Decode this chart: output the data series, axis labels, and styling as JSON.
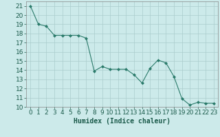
{
  "x": [
    0,
    1,
    2,
    3,
    4,
    5,
    6,
    7,
    8,
    9,
    10,
    11,
    12,
    13,
    14,
    15,
    16,
    17,
    18,
    19,
    20,
    21,
    22,
    23
  ],
  "y": [
    21,
    19,
    18.8,
    17.8,
    17.8,
    17.8,
    17.8,
    17.5,
    13.9,
    14.4,
    14.1,
    14.1,
    14.1,
    13.5,
    12.6,
    14.2,
    15.1,
    14.8,
    13.3,
    10.9,
    10.2,
    10.5,
    10.4,
    10.4
  ],
  "line_color": "#2a7a6a",
  "marker": "D",
  "marker_size": 2,
  "background_color": "#cceaea",
  "grid_color": "#aacccc",
  "xlabel": "Humidex (Indice chaleur)",
  "ylim": [
    10,
    21.5
  ],
  "xlim": [
    -0.5,
    23.5
  ],
  "yticks": [
    10,
    11,
    12,
    13,
    14,
    15,
    16,
    17,
    18,
    19,
    20,
    21
  ],
  "xticks": [
    0,
    1,
    2,
    3,
    4,
    5,
    6,
    7,
    8,
    9,
    10,
    11,
    12,
    13,
    14,
    15,
    16,
    17,
    18,
    19,
    20,
    21,
    22,
    23
  ],
  "xlabel_fontsize": 7,
  "tick_fontsize": 6.5
}
